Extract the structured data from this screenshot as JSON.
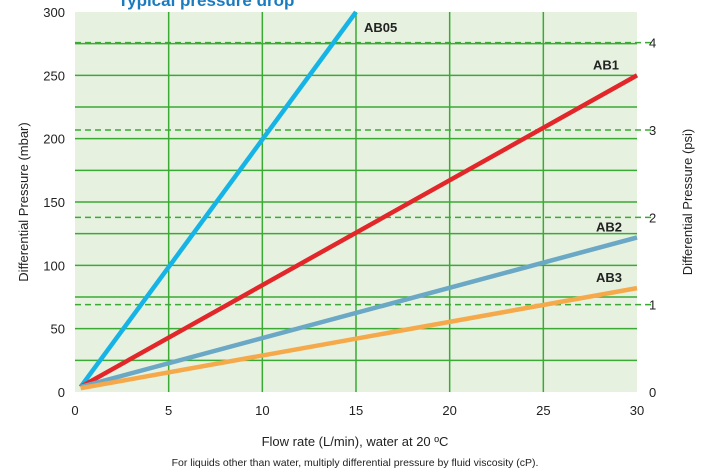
{
  "chart_data": {
    "type": "line",
    "title": "Typical pressure drop",
    "xlabel": "Flow rate (L/min), water at 20 ºC",
    "ylabel": "Differential Pressure (mbar)",
    "y2label": "Differential Pressure (psi)",
    "footnote": "For liquids other than water, multiply differential pressure by fluid viscosity (cP).",
    "xlim": [
      0,
      30
    ],
    "ylim": [
      0,
      300
    ],
    "y2lim": [
      0,
      4.351
    ],
    "x_ticks": [
      0,
      5,
      10,
      15,
      20,
      25,
      30
    ],
    "y_ticks": [
      0,
      50,
      100,
      150,
      200,
      250,
      300
    ],
    "y2_ticks": [
      0,
      1,
      2,
      3,
      4
    ],
    "grid": true,
    "background_color": "#e6f2df",
    "grid_color": "#3aaa35",
    "series": [
      {
        "name": "AB05",
        "color": "#16b4e6",
        "x": [
          0.3,
          15
        ],
        "y": [
          4,
          300
        ]
      },
      {
        "name": "AB1",
        "color": "#e3262a",
        "x": [
          0.3,
          30
        ],
        "y": [
          4,
          250
        ]
      },
      {
        "name": "AB2",
        "color": "#6aa8c6",
        "x": [
          0.3,
          30
        ],
        "y": [
          4,
          122
        ]
      },
      {
        "name": "AB3",
        "color": "#f5a94a",
        "x": [
          0.3,
          30
        ],
        "y": [
          3,
          82
        ]
      }
    ]
  }
}
